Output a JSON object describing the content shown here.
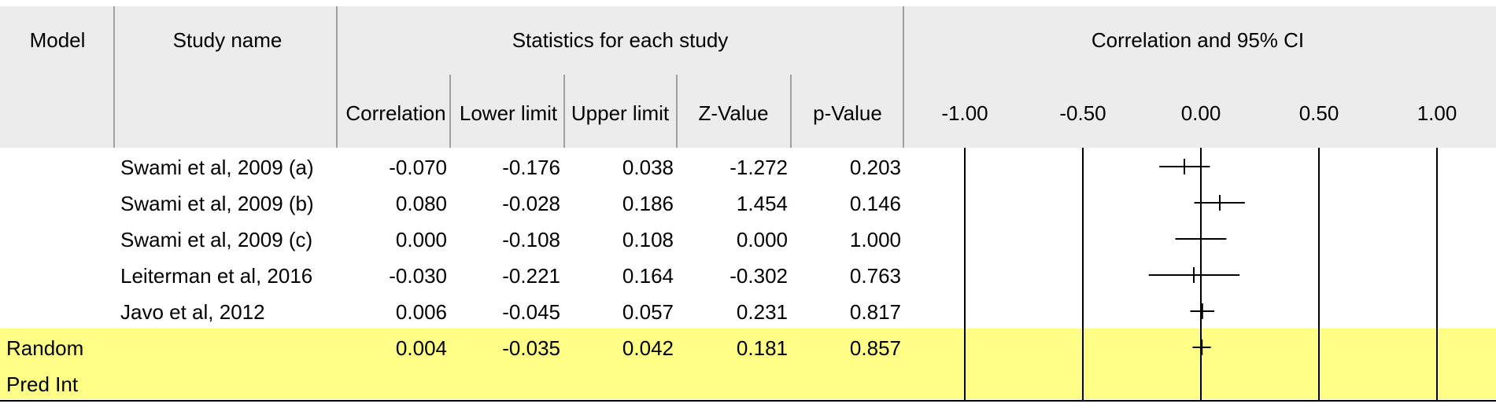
{
  "headers": {
    "model": "Model",
    "study_name": "Study name",
    "stats_group": "Statistics for each study",
    "plot_group": "Correlation and 95% CI",
    "columns": [
      "Correlation",
      "Lower limit",
      "Upper limit",
      "Z-Value",
      "p-Value"
    ]
  },
  "rows": [
    {
      "model": "",
      "study": "Swami et al, 2009 (a)",
      "values": [
        "-0.070",
        "-0.176",
        "0.038",
        "-1.272",
        "0.203"
      ]
    },
    {
      "model": "",
      "study": "Swami et al, 2009 (b)",
      "values": [
        "0.080",
        "-0.028",
        "0.186",
        "1.454",
        "0.146"
      ]
    },
    {
      "model": "",
      "study": "Swami et al, 2009 (c)",
      "values": [
        "0.000",
        "-0.108",
        "0.108",
        "0.000",
        "1.000"
      ]
    },
    {
      "model": "",
      "study": "Leiterman et al, 2016",
      "values": [
        "-0.030",
        "-0.221",
        "0.164",
        "-0.302",
        "0.763"
      ]
    },
    {
      "model": "",
      "study": "Javo et al, 2012",
      "values": [
        "0.006",
        "-0.045",
        "0.057",
        "0.231",
        "0.817"
      ]
    }
  ],
  "summary_rows": [
    {
      "model": "Random",
      "values": [
        "0.004",
        "-0.035",
        "0.042",
        "0.181",
        "0.857"
      ]
    },
    {
      "model": "Pred Int",
      "values": [
        "",
        "",
        "",
        "",
        ""
      ]
    }
  ],
  "colors": {
    "header_bg": "#ececec",
    "summary_bg": "#ffff88",
    "line": "#000000",
    "divider": "#888888"
  },
  "chart_data": {
    "type": "forest",
    "title": "Correlation and 95% CI",
    "xlim": [
      -1.0,
      1.0
    ],
    "x_ticks": [
      "-1.00",
      "-0.50",
      "0.00",
      "0.50",
      "1.00"
    ],
    "x_tick_values": [
      -1.0,
      -0.5,
      0.0,
      0.5,
      1.0
    ],
    "studies": [
      {
        "name": "Swami et al, 2009 (a)",
        "estimate": -0.07,
        "lower": -0.176,
        "upper": 0.038
      },
      {
        "name": "Swami et al, 2009 (b)",
        "estimate": 0.08,
        "lower": -0.028,
        "upper": 0.186
      },
      {
        "name": "Swami et al, 2009 (c)",
        "estimate": 0.0,
        "lower": -0.108,
        "upper": 0.108
      },
      {
        "name": "Leiterman et al, 2016",
        "estimate": -0.03,
        "lower": -0.221,
        "upper": 0.164
      },
      {
        "name": "Javo et al, 2012",
        "estimate": 0.006,
        "lower": -0.045,
        "upper": 0.057
      }
    ],
    "summary": {
      "name": "Random",
      "estimate": 0.004,
      "lower": -0.035,
      "upper": 0.042
    },
    "grid": true
  }
}
